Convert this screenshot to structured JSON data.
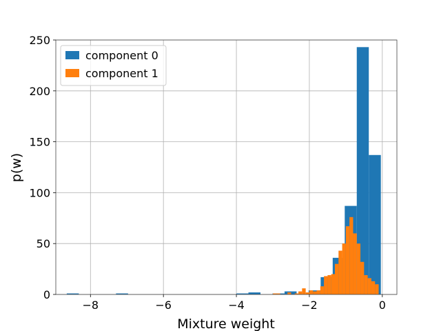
{
  "chart_data": {
    "type": "bar",
    "title": "",
    "xlabel": "Mixture weight",
    "ylabel": "p(w)",
    "xlim": [
      -8.95,
      0.4
    ],
    "ylim": [
      0,
      250
    ],
    "grid": true,
    "legend_placement": "top-left",
    "x_ticks": [
      -8,
      -6,
      -4,
      -2,
      0
    ],
    "x_tick_labels": [
      "−8",
      "−6",
      "−4",
      "−2",
      "0"
    ],
    "y_ticks": [
      0,
      50,
      100,
      150,
      200,
      250
    ],
    "y_tick_labels": [
      "0",
      "50",
      "100",
      "150",
      "200",
      "250"
    ],
    "series": [
      {
        "name": "component 0",
        "color": "#1f77b4",
        "bins": [
          {
            "x0": -8.65,
            "x1": -8.32,
            "value": 1
          },
          {
            "x0": -7.3,
            "x1": -6.97,
            "value": 1
          },
          {
            "x0": -4.0,
            "x1": -3.67,
            "value": 1
          },
          {
            "x0": -3.67,
            "x1": -3.34,
            "value": 2
          },
          {
            "x0": -3.01,
            "x1": -2.68,
            "value": 1
          },
          {
            "x0": -2.68,
            "x1": -2.35,
            "value": 3
          },
          {
            "x0": -2.02,
            "x1": -1.69,
            "value": 4
          },
          {
            "x0": -1.69,
            "x1": -1.36,
            "value": 17
          },
          {
            "x0": -1.36,
            "x1": -1.03,
            "value": 36
          },
          {
            "x0": -1.03,
            "x1": -0.7,
            "value": 87
          },
          {
            "x0": -0.7,
            "x1": -0.37,
            "value": 243
          },
          {
            "x0": -0.37,
            "x1": -0.04,
            "value": 137
          }
        ]
      },
      {
        "name": "component 1",
        "color": "#ff7f0e",
        "bins": [
          {
            "x0": -3.0,
            "x1": -2.9,
            "value": 1
          },
          {
            "x0": -2.9,
            "x1": -2.8,
            "value": 1
          },
          {
            "x0": -2.6,
            "x1": -2.5,
            "value": 2
          },
          {
            "x0": -2.4,
            "x1": -2.3,
            "value": 1
          },
          {
            "x0": -2.3,
            "x1": -2.2,
            "value": 3
          },
          {
            "x0": -2.2,
            "x1": -2.1,
            "value": 6
          },
          {
            "x0": -2.1,
            "x1": -2.0,
            "value": 2
          },
          {
            "x0": -2.0,
            "x1": -1.9,
            "value": 4
          },
          {
            "x0": -1.9,
            "x1": -1.8,
            "value": 3
          },
          {
            "x0": -1.8,
            "x1": -1.7,
            "value": 4
          },
          {
            "x0": -1.7,
            "x1": -1.6,
            "value": 8
          },
          {
            "x0": -1.6,
            "x1": -1.5,
            "value": 18
          },
          {
            "x0": -1.5,
            "x1": -1.4,
            "value": 19
          },
          {
            "x0": -1.4,
            "x1": -1.3,
            "value": 20
          },
          {
            "x0": -1.3,
            "x1": -1.2,
            "value": 30
          },
          {
            "x0": -1.2,
            "x1": -1.1,
            "value": 43
          },
          {
            "x0": -1.1,
            "x1": -1.0,
            "value": 50
          },
          {
            "x0": -1.0,
            "x1": -0.9,
            "value": 67
          },
          {
            "x0": -0.9,
            "x1": -0.8,
            "value": 76
          },
          {
            "x0": -0.8,
            "x1": -0.7,
            "value": 60
          },
          {
            "x0": -0.7,
            "x1": -0.6,
            "value": 50
          },
          {
            "x0": -0.6,
            "x1": -0.5,
            "value": 32
          },
          {
            "x0": -0.5,
            "x1": -0.4,
            "value": 19
          },
          {
            "x0": -0.4,
            "x1": -0.3,
            "value": 16
          },
          {
            "x0": -0.3,
            "x1": -0.2,
            "value": 13
          },
          {
            "x0": -0.2,
            "x1": -0.1,
            "value": 10
          }
        ]
      }
    ]
  }
}
